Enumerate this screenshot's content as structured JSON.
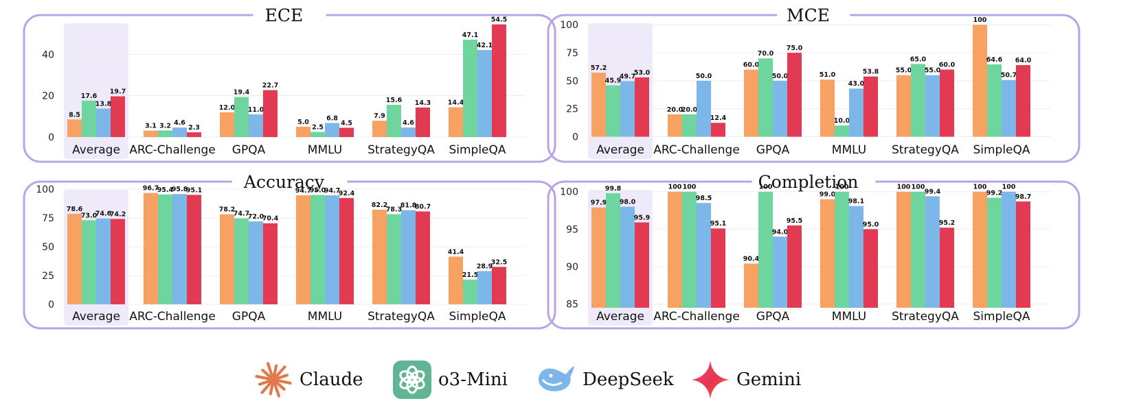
{
  "colors": {
    "claude": "#f7a163",
    "o3mini": "#6fd59e",
    "deepseek": "#7db6e8",
    "gemini": "#e23a52",
    "frame": "#b7a3e6",
    "highlight": "#efeafa",
    "o3_icon_bg": "#61b594"
  },
  "legend": [
    {
      "key": "claude",
      "label": "Claude",
      "icon": "claude-starburst-icon"
    },
    {
      "key": "o3mini",
      "label": "o3-Mini",
      "icon": "openai-knot-icon"
    },
    {
      "key": "deepseek",
      "label": "DeepSeek",
      "icon": "deepseek-whale-icon"
    },
    {
      "key": "gemini",
      "label": "Gemini",
      "icon": "gemini-sparkle-icon"
    }
  ],
  "chart_data": [
    {
      "id": "ece",
      "type": "bar",
      "title": "ECE",
      "categories": [
        "Average",
        "ARC-Challenge",
        "GPQA",
        "MMLU",
        "StrategyQA",
        "SimpleQA"
      ],
      "highlight_category": "Average",
      "ylim": [
        -2,
        57
      ],
      "yticks": [
        0,
        20,
        40
      ],
      "series": [
        {
          "name": "Claude",
          "values": [
            8.5,
            3.1,
            12.0,
            5.0,
            7.9,
            14.4
          ]
        },
        {
          "name": "o3-Mini",
          "values": [
            17.6,
            3.2,
            19.4,
            2.5,
            15.6,
            47.1
          ]
        },
        {
          "name": "DeepSeek",
          "values": [
            13.8,
            4.6,
            11.0,
            6.8,
            4.6,
            42.1
          ]
        },
        {
          "name": "Gemini",
          "values": [
            19.7,
            2.3,
            22.7,
            4.5,
            14.3,
            54.5
          ]
        }
      ],
      "labels": [
        [
          "8.5",
          "3.1",
          "12.0",
          "5.0",
          "7.9",
          "14.4"
        ],
        [
          "17.6",
          "3.2",
          "19.4",
          "2.5",
          "15.6",
          "47.1"
        ],
        [
          "13.8",
          "4.6",
          "11.0",
          "6.8",
          "4.6",
          "42.1"
        ],
        [
          "19.7",
          "2.3",
          "22.7",
          "4.5",
          "14.3",
          "54.5"
        ]
      ]
    },
    {
      "id": "mce",
      "type": "bar",
      "title": "MCE",
      "categories": [
        "Average",
        "ARC-Challenge",
        "GPQA",
        "MMLU",
        "StrategyQA",
        "SimpleQA"
      ],
      "highlight_category": "Average",
      "ylim": [
        -4,
        105
      ],
      "yticks": [
        0,
        25,
        50,
        75,
        100
      ],
      "series": [
        {
          "name": "Claude",
          "values": [
            57.2,
            20.0,
            60.0,
            51.0,
            55.0,
            100
          ]
        },
        {
          "name": "o3-Mini",
          "values": [
            45.9,
            20.0,
            70.0,
            10.0,
            65.0,
            64.6
          ]
        },
        {
          "name": "DeepSeek",
          "values": [
            49.7,
            50.0,
            50.0,
            43.0,
            55.0,
            50.7
          ]
        },
        {
          "name": "Gemini",
          "values": [
            53.0,
            12.4,
            75.0,
            53.8,
            60.0,
            64.0
          ]
        }
      ],
      "labels": [
        [
          "57.2",
          "20.0",
          "60.0",
          "51.0",
          "55.0",
          "100"
        ],
        [
          "45.9",
          "20.0",
          "70.0",
          "10.0",
          "65.0",
          "64.6"
        ],
        [
          "49.7",
          "50.0",
          "50.0",
          "43.0",
          "55.0",
          "50.7"
        ],
        [
          "53.0",
          "12.4",
          "75.0",
          "53.8",
          "60.0",
          "64.0"
        ]
      ]
    },
    {
      "id": "accuracy",
      "type": "bar",
      "title": "Accuracy",
      "categories": [
        "Average",
        "ARC-Challenge",
        "GPQA",
        "MMLU",
        "StrategyQA",
        "SimpleQA"
      ],
      "highlight_category": "Average",
      "ylim": [
        -3,
        103
      ],
      "yticks": [
        0,
        25,
        50,
        75,
        100
      ],
      "series": [
        {
          "name": "Claude",
          "values": [
            78.6,
            96.7,
            78.2,
            94.7,
            82.2,
            41.4
          ]
        },
        {
          "name": "o3-Mini",
          "values": [
            73.0,
            95.4,
            74.7,
            95.0,
            78.3,
            21.5
          ]
        },
        {
          "name": "DeepSeek",
          "values": [
            74.6,
            95.8,
            72.0,
            94.7,
            81.8,
            28.9
          ]
        },
        {
          "name": "Gemini",
          "values": [
            74.2,
            95.1,
            70.4,
            92.4,
            80.7,
            32.5
          ]
        }
      ],
      "labels": [
        [
          "78.6",
          "96.7",
          "78.2",
          "94.7",
          "82.2",
          "41.4"
        ],
        [
          "73.0",
          "95.4",
          "74.7",
          "95.0",
          "78.3",
          "21.5"
        ],
        [
          "74.6",
          "95.8",
          "72.0",
          "94.7",
          "81.8",
          "28.9"
        ],
        [
          "74.2",
          "95.1",
          "70.4",
          "92.4",
          "80.7",
          "32.5"
        ]
      ]
    },
    {
      "id": "completion",
      "type": "bar",
      "title": "Completion",
      "categories": [
        "Average",
        "ARC-Challenge",
        "GPQA",
        "MMLU",
        "StrategyQA",
        "SimpleQA"
      ],
      "highlight_category": "Average",
      "ylim": [
        84.5,
        100.8
      ],
      "yticks": [
        85,
        90,
        95,
        100
      ],
      "series": [
        {
          "name": "Claude",
          "values": [
            97.9,
            100,
            90.4,
            99.0,
            100,
            100
          ]
        },
        {
          "name": "o3-Mini",
          "values": [
            99.8,
            100,
            100,
            100,
            100,
            99.2
          ]
        },
        {
          "name": "DeepSeek",
          "values": [
            98.0,
            98.5,
            94.0,
            98.1,
            99.4,
            100
          ]
        },
        {
          "name": "Gemini",
          "values": [
            95.9,
            95.1,
            95.5,
            95.0,
            95.2,
            98.7
          ]
        }
      ],
      "labels": [
        [
          "97.9",
          "100",
          "90.4",
          "99.0",
          "100",
          "100"
        ],
        [
          "99.8",
          "100",
          "100",
          "100",
          "100",
          "99.2"
        ],
        [
          "98.0",
          "98.5",
          "94.0",
          "98.1",
          "99.4",
          "100"
        ],
        [
          "95.9",
          "95.1",
          "95.5",
          "95.0",
          "95.2",
          "98.7"
        ]
      ]
    }
  ]
}
